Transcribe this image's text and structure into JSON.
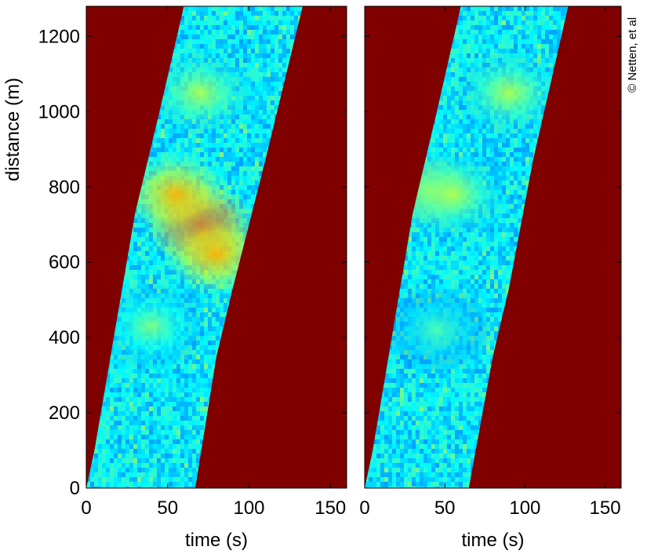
{
  "copyright": "© Netten, et al",
  "colors": {
    "background_fill": "#800000",
    "jet_low": "#00008f",
    "jet_high": "#800000"
  },
  "chart_data": [
    {
      "type": "heatmap",
      "panel": "left",
      "xlabel": "time (s)",
      "ylabel": "distance (m)",
      "xlim": [
        0,
        160
      ],
      "ylim": [
        0,
        1280
      ],
      "xticks": [
        0,
        50,
        100,
        150
      ],
      "yticks": [
        0,
        200,
        400,
        600,
        800,
        1000,
        1200
      ],
      "xtick_labels": [
        "0",
        "50",
        "100",
        "150"
      ],
      "ytick_labels": [
        "0",
        "200",
        "400",
        "600",
        "800",
        "1000",
        "1200"
      ],
      "colormap": "jet",
      "band_left_edge": [
        [
          0,
          0
        ],
        [
          5,
          100
        ],
        [
          30,
          730
        ],
        [
          45,
          1000
        ],
        [
          60,
          1280
        ]
      ],
      "band_right_edge": [
        [
          67,
          0
        ],
        [
          80,
          350
        ],
        [
          90,
          530
        ],
        [
          110,
          870
        ],
        [
          133,
          1280
        ]
      ],
      "hotspots": [
        {
          "t": 70,
          "d": 700,
          "level": 0.85
        },
        {
          "t": 55,
          "d": 780,
          "level": 0.7
        },
        {
          "t": 80,
          "d": 620,
          "level": 0.7
        },
        {
          "t": 70,
          "d": 1050,
          "level": 0.55
        },
        {
          "t": 40,
          "d": 430,
          "level": 0.5
        }
      ]
    },
    {
      "type": "heatmap",
      "panel": "right",
      "xlabel": "time (s)",
      "ylabel": "",
      "xlim": [
        0,
        160
      ],
      "ylim": [
        0,
        1280
      ],
      "xticks": [
        0,
        50,
        100,
        150
      ],
      "yticks": [
        0,
        200,
        400,
        600,
        800,
        1000,
        1200
      ],
      "xtick_labels": [
        "0",
        "50",
        "100",
        "150"
      ],
      "ytick_labels": [],
      "colormap": "jet",
      "band_left_edge": [
        [
          0,
          0
        ],
        [
          5,
          100
        ],
        [
          30,
          730
        ],
        [
          45,
          1000
        ],
        [
          60,
          1280
        ]
      ],
      "band_right_edge": [
        [
          65,
          0
        ],
        [
          80,
          350
        ],
        [
          90,
          530
        ],
        [
          105,
          870
        ],
        [
          127,
          1280
        ]
      ],
      "hotspots": [
        {
          "t": 40,
          "d": 790,
          "level": 0.62
        },
        {
          "t": 90,
          "d": 1050,
          "level": 0.55
        },
        {
          "t": 55,
          "d": 780,
          "level": 0.55
        },
        {
          "t": 45,
          "d": 420,
          "level": 0.45
        }
      ]
    }
  ]
}
